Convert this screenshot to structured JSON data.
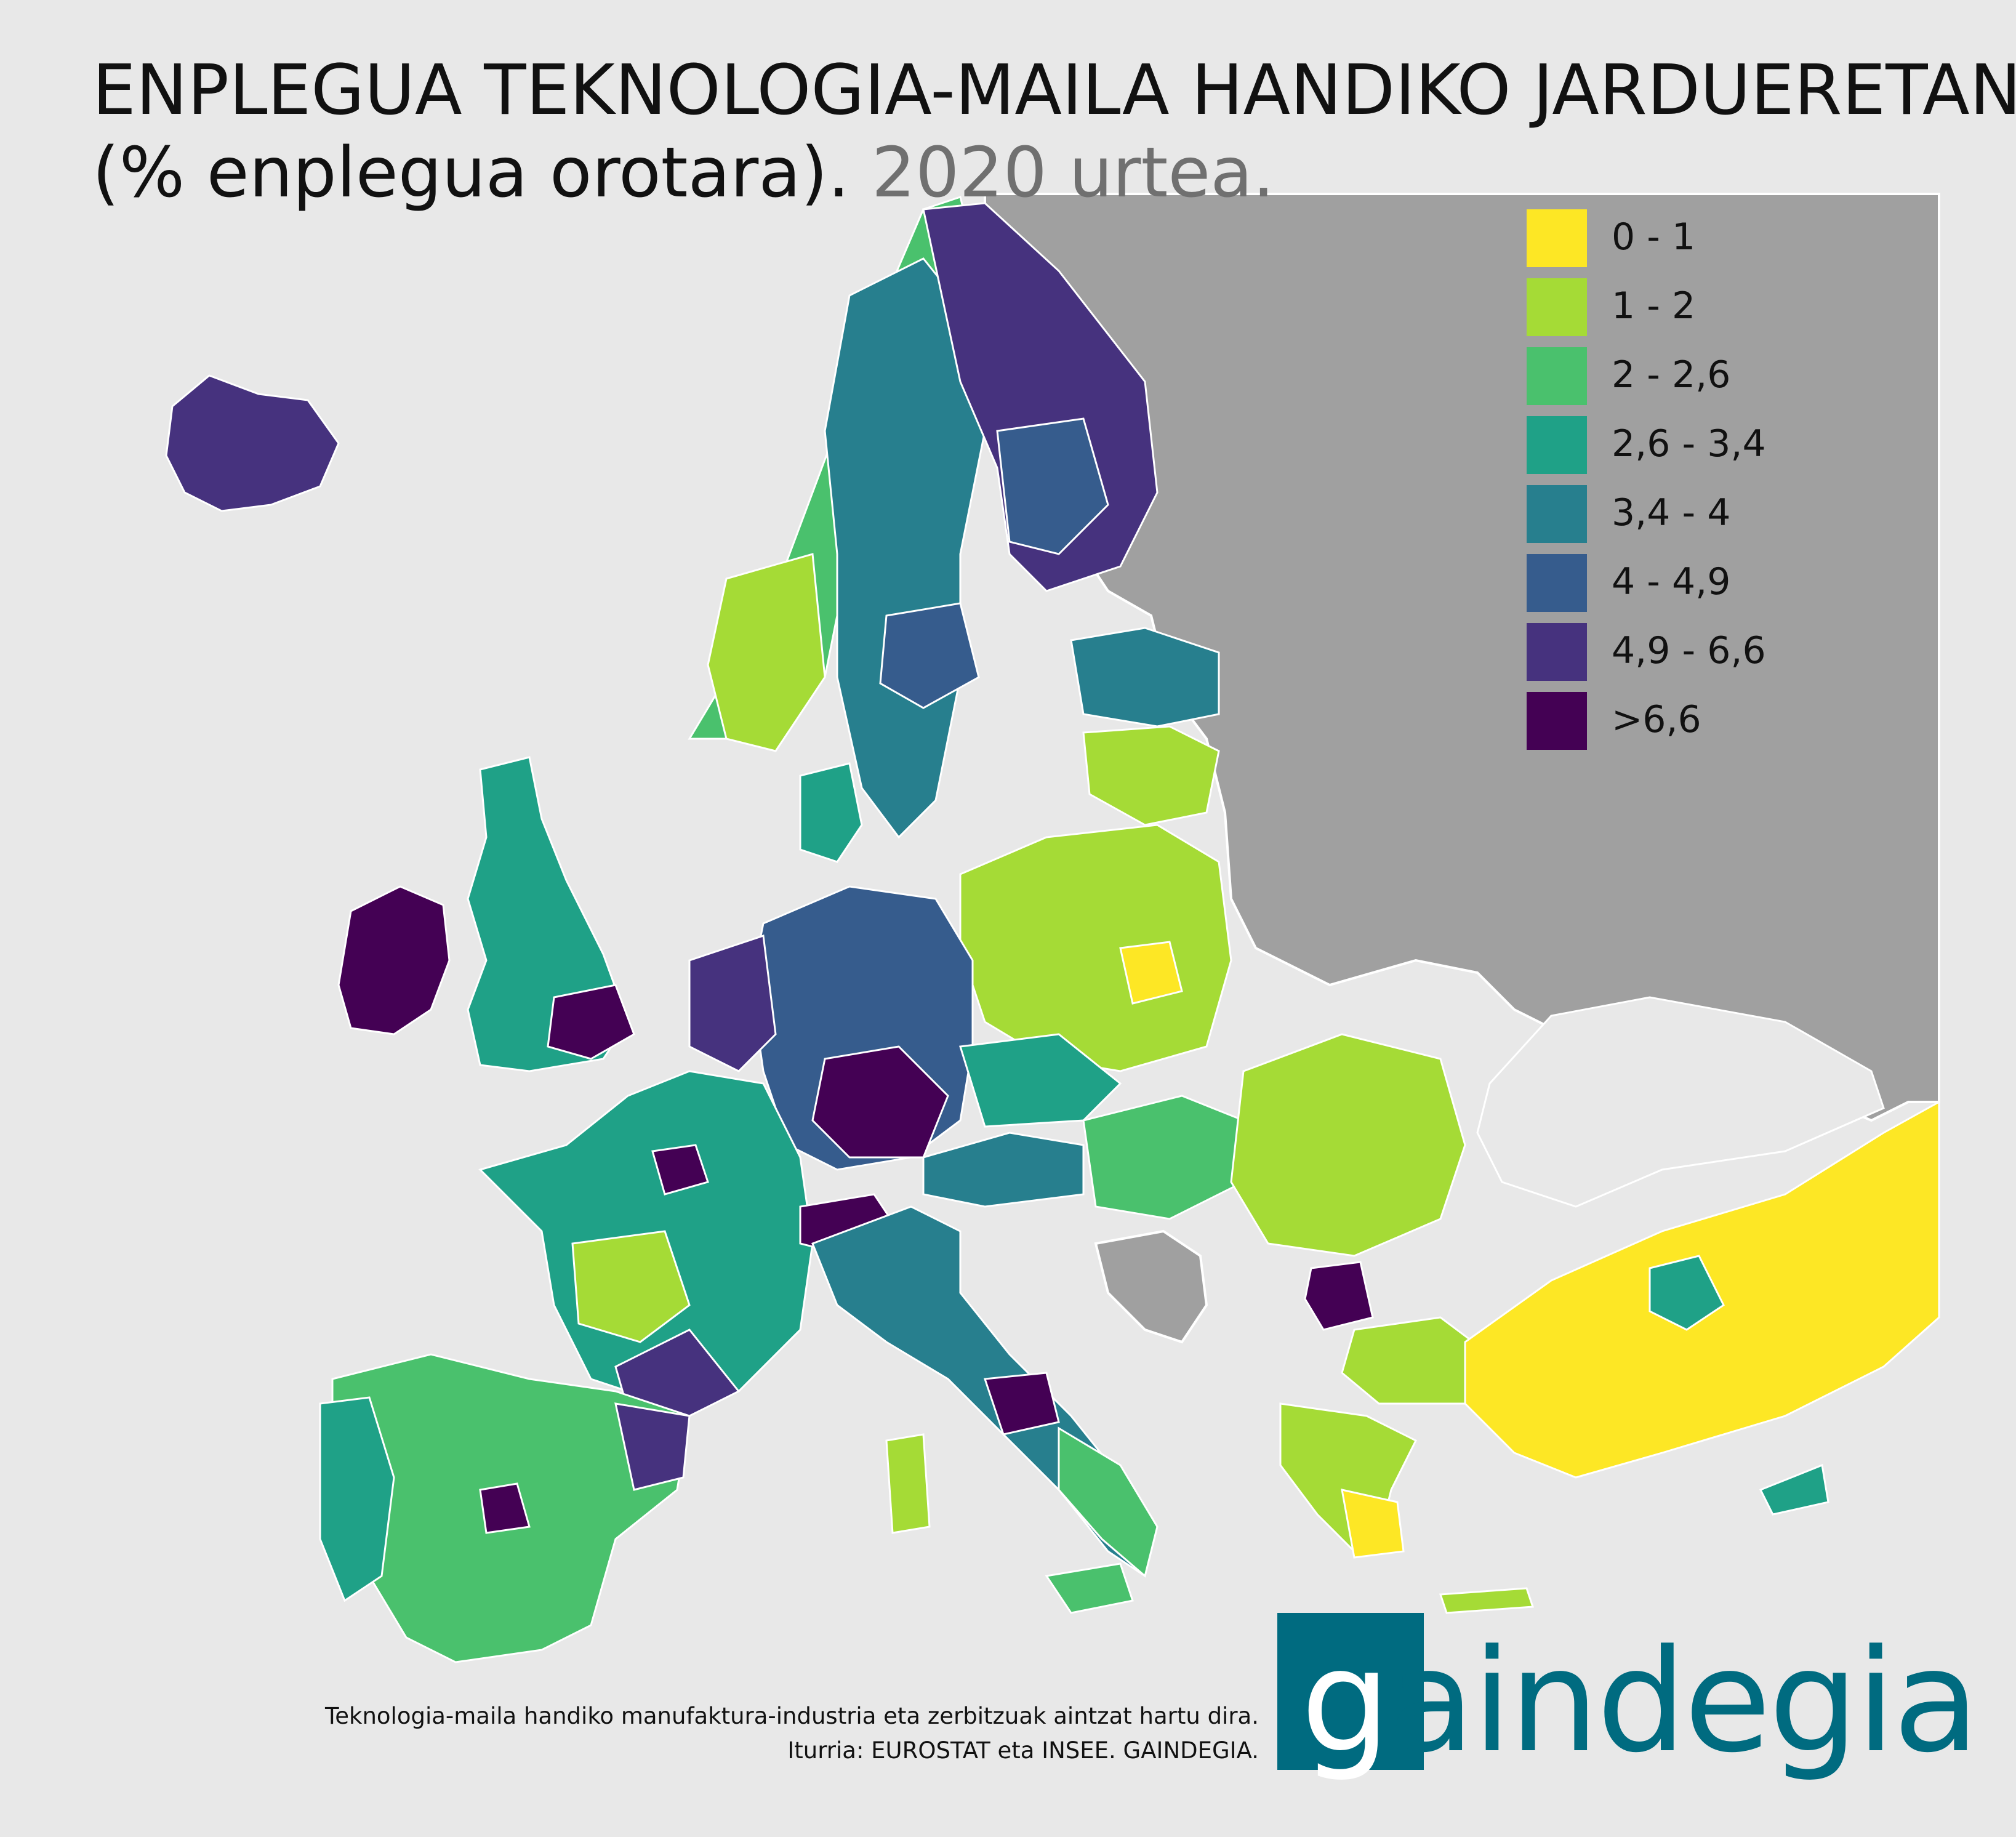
{
  "title": {
    "line1": "ENPLEGUA TEKNOLOGIA-MAILA HANDIKO JARDUERETAN",
    "line2_main": "(% enplegua orotara).",
    "line2_year": "2020 urtea."
  },
  "legend": [
    {
      "label": "0 - 1",
      "color": "#fde725"
    },
    {
      "label": "1 - 2",
      "color": "#a5db36"
    },
    {
      "label": "2 - 2,6",
      "color": "#4ac16d"
    },
    {
      "label": "2,6 - 3,4",
      "color": "#1fa187"
    },
    {
      "label": "3,4 - 4",
      "color": "#277f8e"
    },
    {
      "label": "4 - 4,9",
      "color": "#365c8d"
    },
    {
      "label": "4,9 - 6,6",
      "color": "#46327e"
    },
    {
      "label": ">6,6",
      "color": "#440154"
    }
  ],
  "footnote": {
    "line1": "Teknologia-maila handiko manufaktura-industria eta zerbitzuak aintzat hartu dira.",
    "line2": "Iturria: EUROSTAT eta INSEE. GAINDEGIA."
  },
  "logo": {
    "first_letter": "g",
    "rest": "aindegia",
    "color": "#006b80"
  },
  "map_colors": {
    "sea": "#e8e8e8",
    "no_data": "#a0a0a0",
    "border": "#ffffff"
  }
}
